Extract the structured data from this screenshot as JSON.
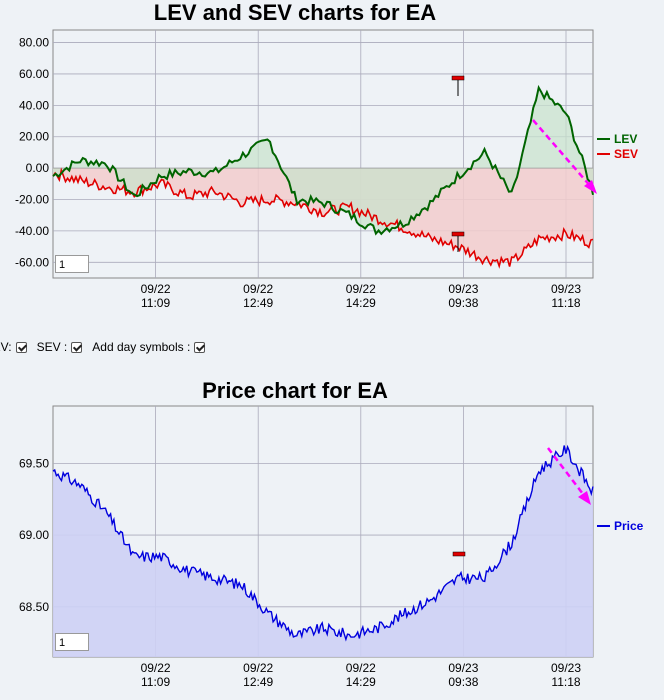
{
  "lev_chart": {
    "title": "LEV and SEV charts for EA",
    "y_ticks": [
      "80.00",
      "60.00",
      "40.00",
      "20.00",
      "0.00",
      "-20.00",
      "-40.00",
      "-60.00"
    ],
    "x_ticks": [
      {
        "date": "09/22",
        "time": "11:09"
      },
      {
        "date": "09/22",
        "time": "12:49"
      },
      {
        "date": "09/22",
        "time": "14:29"
      },
      {
        "date": "09/23",
        "time": "09:38"
      },
      {
        "date": "09/23",
        "time": "11:18"
      }
    ],
    "legend": {
      "lev": "LEV",
      "sev": "SEV"
    },
    "zoom_value": "1",
    "colors": {
      "lev": "#006400",
      "sev": "#e00000",
      "lev_fill": "#c8e3cc",
      "sev_fill": "#f2cccc",
      "arrow": "#ff00ff"
    }
  },
  "controls": {
    "lev_label": "LEV:",
    "sev_label": "SEV :",
    "day_label": "Add day symbols :"
  },
  "price_chart": {
    "title": "Price chart for EA",
    "y_ticks": [
      "69.50",
      "69.00",
      "68.50"
    ],
    "x_ticks": [
      {
        "date": "09/22",
        "time": "11:09"
      },
      {
        "date": "09/22",
        "time": "12:49"
      },
      {
        "date": "09/22",
        "time": "14:29"
      },
      {
        "date": "09/23",
        "time": "09:38"
      },
      {
        "date": "09/23",
        "time": "11:18"
      }
    ],
    "legend": {
      "price": "Price"
    },
    "zoom_value": "1",
    "colors": {
      "price": "#0000dd",
      "price_fill": "#cdd0f5",
      "arrow": "#ff00ff"
    }
  },
  "chart_data": [
    {
      "type": "line",
      "title": "LEV and SEV charts for EA",
      "ylim": [
        -70,
        88
      ],
      "x": [
        0,
        5,
        10,
        15,
        20,
        25,
        30,
        35,
        40,
        45,
        50,
        55,
        60,
        65,
        70,
        75,
        80,
        85,
        90,
        95,
        100
      ],
      "series": [
        {
          "name": "LEV",
          "values": [
            -5,
            5,
            3,
            -18,
            -5,
            -2,
            -3,
            8,
            18,
            -20,
            -22,
            -30,
            -40,
            -35,
            -22,
            -5,
            10,
            -18,
            50,
            35,
            -15
          ]
        },
        {
          "name": "SEV",
          "values": [
            -3,
            -8,
            -12,
            -15,
            -10,
            -18,
            -15,
            -22,
            -20,
            -22,
            -28,
            -25,
            -32,
            -38,
            -45,
            -50,
            -58,
            -60,
            -45,
            -42,
            -48
          ]
        }
      ]
    },
    {
      "type": "line",
      "title": "Price chart for EA",
      "ylim": [
        68.15,
        69.9
      ],
      "x": [
        0,
        5,
        10,
        15,
        20,
        25,
        30,
        35,
        40,
        45,
        50,
        55,
        60,
        65,
        70,
        75,
        80,
        85,
        90,
        95,
        100
      ],
      "series": [
        {
          "name": "Price",
          "values": [
            69.45,
            69.35,
            69.15,
            68.85,
            68.85,
            68.75,
            68.7,
            68.65,
            68.45,
            68.3,
            68.35,
            68.3,
            68.35,
            68.45,
            68.55,
            68.7,
            68.7,
            68.95,
            69.45,
            69.6,
            69.3
          ]
        }
      ]
    }
  ]
}
